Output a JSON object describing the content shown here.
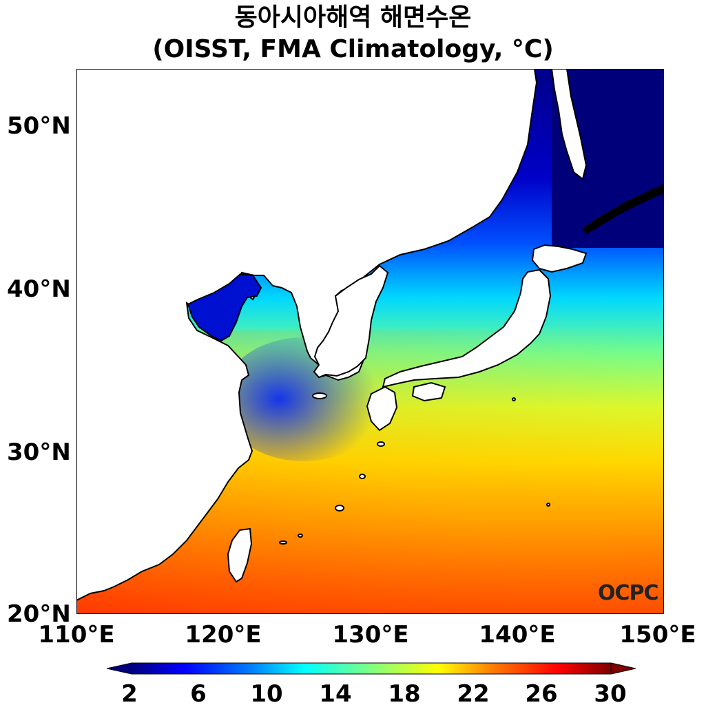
{
  "title": {
    "line1": "동아시아해역 해면수온",
    "line2": "(OISST, FMA Climatology, °C)"
  },
  "axes": {
    "y_ticks": [
      "50°N",
      "40°N",
      "30°N",
      "20°N"
    ],
    "x_ticks": [
      "110°E",
      "120°E",
      "130°E",
      "140°E",
      "150°E"
    ],
    "lon_range": [
      110,
      150
    ],
    "lat_range": [
      20,
      53.5
    ]
  },
  "colorbar": {
    "ticks": [
      "2",
      "6",
      "10",
      "14",
      "18",
      "22",
      "26",
      "30"
    ],
    "range": [
      0,
      32
    ],
    "colormap": "jet",
    "colors": [
      "#00007f",
      "#0000ff",
      "#0080ff",
      "#00ffff",
      "#80ff80",
      "#ffff00",
      "#ff8000",
      "#ff0000",
      "#7f0000"
    ]
  },
  "logo": "OCPC",
  "colors": {
    "land": "#ffffff",
    "coastline": "#000000",
    "cold_sea": "#000080",
    "warm_sea": "#ff2a00"
  }
}
